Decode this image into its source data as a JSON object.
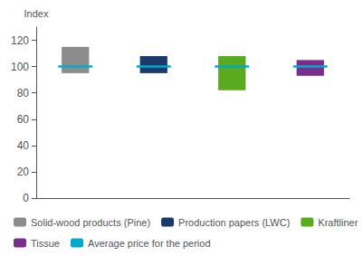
{
  "chart_data": {
    "type": "bar",
    "ylabel": "Index",
    "categories": [
      "Solid-wood products (Pine)",
      "Production papers (LWC)",
      "Kraftliner",
      "Tissue"
    ],
    "low": [
      95,
      95,
      82,
      93
    ],
    "high": [
      115,
      108,
      108,
      105
    ],
    "colors": [
      "#8c8c8c",
      "#1a3a6b",
      "#5aaa1e",
      "#7b2d8b"
    ],
    "series": [
      {
        "name": "Average price for the period",
        "type": "line",
        "color": "#00aacc",
        "values": [
          100,
          100,
          100,
          100
        ]
      }
    ],
    "ylim": [
      0,
      130
    ],
    "yticks": [
      0,
      20,
      40,
      60,
      80,
      100,
      120
    ],
    "grid": false,
    "tick_labels": "y",
    "legend": "bottom"
  }
}
